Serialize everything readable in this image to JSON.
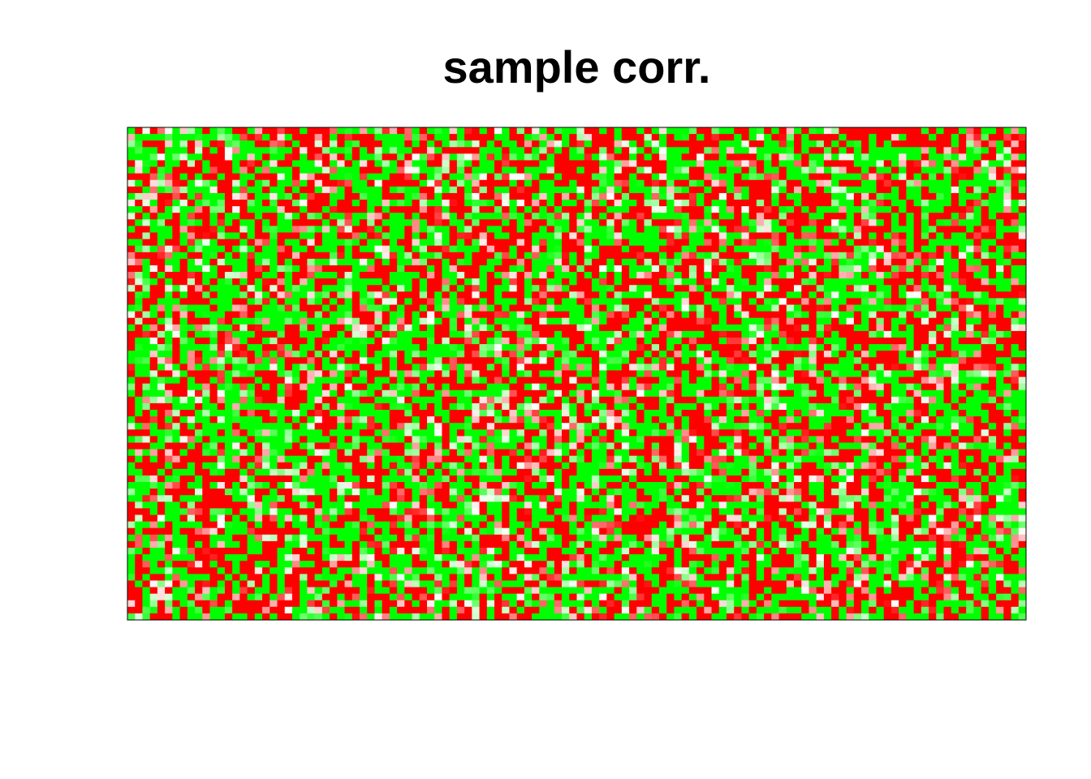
{
  "chart_data": {
    "type": "heatmap",
    "title": "sample corr.",
    "xlabel": "",
    "ylabel": "",
    "n_cols": 120,
    "n_rows": 75,
    "value_range": [
      -1,
      1
    ],
    "color_scale": {
      "low": "#00ff00",
      "mid": "#ffffff",
      "high": "#ff0000"
    },
    "frame_color": "#000000",
    "grid": false,
    "legend": "none"
  }
}
